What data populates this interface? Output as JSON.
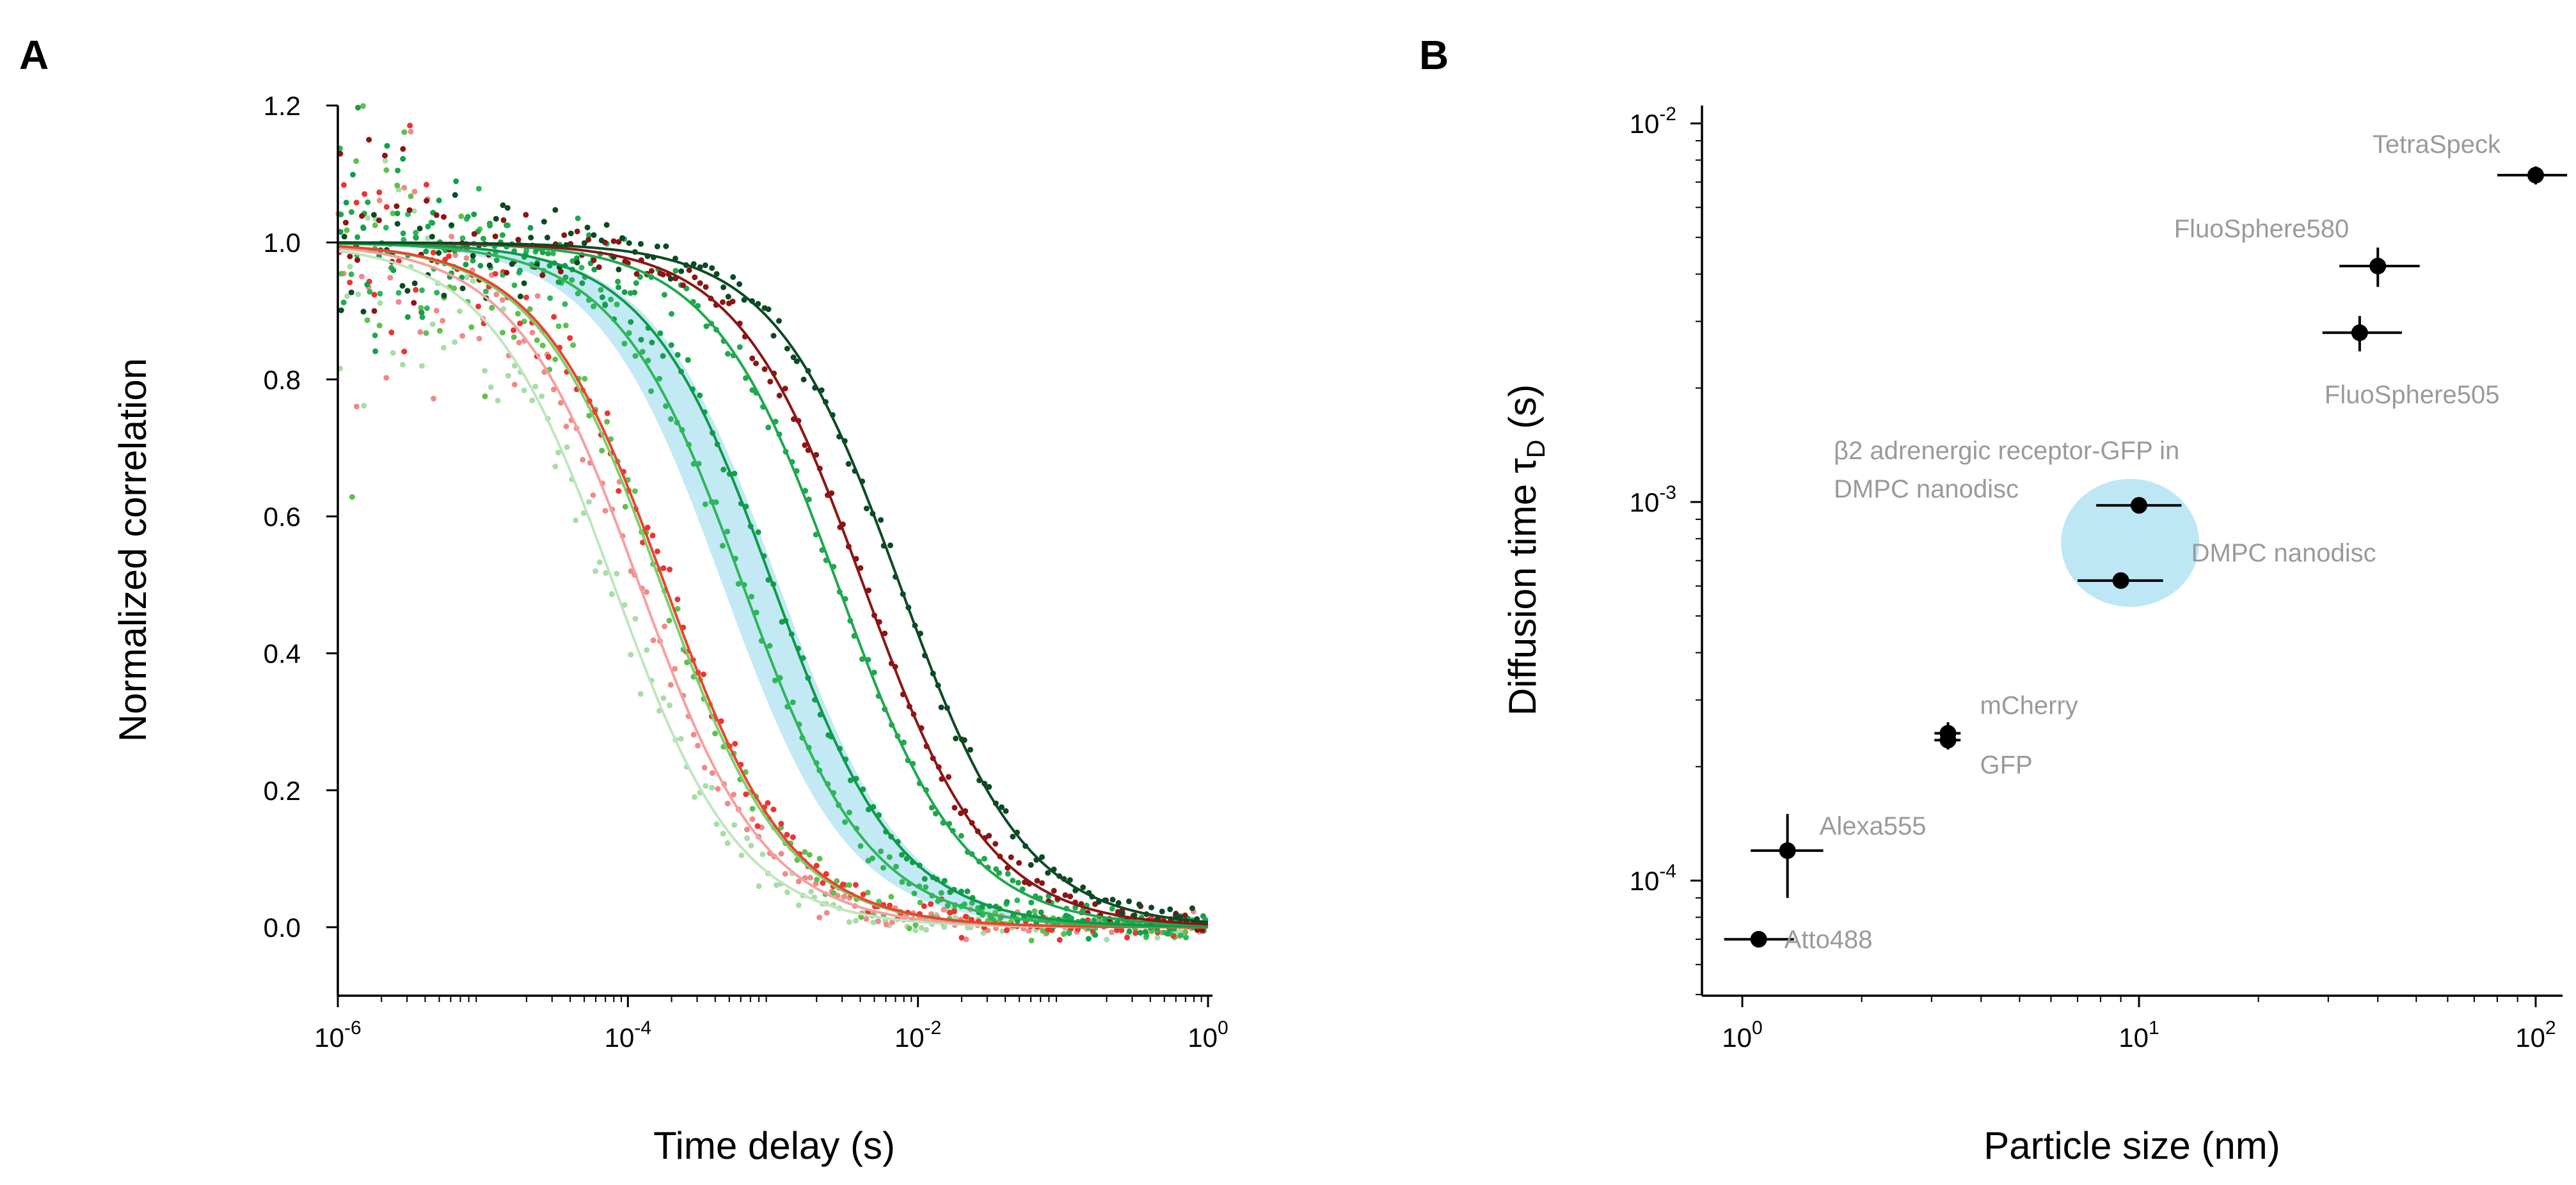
{
  "chart_data": [
    {
      "panel": "A",
      "type": "line",
      "title": "",
      "xlabel": "Time delay (s)",
      "ylabel": "Normalized correlation",
      "xscale": "log",
      "xlim": [
        1e-06,
        1
      ],
      "ylim": [
        -0.1,
        1.2
      ],
      "x_ticks": [
        {
          "value": 1e-06,
          "base": "10",
          "exp": "-6"
        },
        {
          "value": 0.0001,
          "base": "10",
          "exp": "-4"
        },
        {
          "value": 0.01,
          "base": "10",
          "exp": "-2"
        },
        {
          "value": 1,
          "base": "10",
          "exp": "0"
        }
      ],
      "y_ticks": [
        "0.0",
        "0.2",
        "0.4",
        "0.6",
        "0.8",
        "1.0",
        "1.2"
      ],
      "y_tick_values": [
        0.0,
        0.2,
        0.4,
        0.6,
        0.8,
        1.0,
        1.2
      ],
      "band": {
        "color": "#bde7f4",
        "tau_low": 0.00045,
        "tau_high": 0.0011
      },
      "series": [
        {
          "name": "Atto488",
          "color": "#bfe6bf",
          "point_color": "#a8dca8",
          "tau_d": 8e-05
        },
        {
          "name": "Alexa555",
          "color": "#f5a0a0",
          "point_color": "#f08a8a",
          "tau_d": 0.00012
        },
        {
          "name": "GFP",
          "color": "#7ccf6c",
          "point_color": "#5fc04f",
          "tau_d": 0.00017
        },
        {
          "name": "mCherry",
          "color": "#e8452c",
          "point_color": "#ee3333",
          "tau_d": 0.00018
        },
        {
          "name": "DMPC nanodisc",
          "color": "#2fb65a",
          "point_color": "#2fb65a",
          "tau_d": 0.00062
        },
        {
          "name": "β2 adrenergic receptor-GFP in DMPC nanodisc",
          "color": "#0e9a48",
          "point_color": "#12a04a",
          "tau_d": 0.001
        },
        {
          "name": "FluoSphere505",
          "color": "#1fa84f",
          "point_color": "#1fa84f",
          "tau_d": 0.0028
        },
        {
          "name": "FluoSphere580",
          "color": "#8b1515",
          "point_color": "#8b1515",
          "tau_d": 0.0042
        },
        {
          "name": "TetraSpeck",
          "color": "#0b4a24",
          "point_color": "#0b4a24",
          "tau_d": 0.0075
        }
      ]
    },
    {
      "panel": "B",
      "type": "scatter",
      "title": "",
      "xlabel": "Particle size (nm)",
      "ylabel": "Diffusion time τ",
      "ylabel_sub": "D",
      "ylabel_suffix": " (s)",
      "xscale": "log",
      "yscale": "log",
      "xlim": [
        0.8,
        120
      ],
      "ylim": [
        5e-05,
        0.012
      ],
      "x_ticks": [
        {
          "value": 1,
          "base": "10",
          "exp": "0"
        },
        {
          "value": 10,
          "base": "10",
          "exp": "1"
        },
        {
          "value": 100,
          "base": "10",
          "exp": "2"
        }
      ],
      "y_ticks": [
        {
          "value": 0.0001,
          "base": "10",
          "exp": "-4"
        },
        {
          "value": 0.001,
          "base": "10",
          "exp": "-3"
        },
        {
          "value": 0.01,
          "base": "10",
          "exp": "-2"
        }
      ],
      "highlight": {
        "color": "#bde7f4",
        "x": 9.5,
        "y": 0.00078
      },
      "points": [
        {
          "label": "Atto488",
          "x": 1.1,
          "y": 7e-05,
          "x_err": [
            0.9,
            1.35
          ],
          "y_err": null,
          "label_pos": "right"
        },
        {
          "label": "Alexa555",
          "x": 1.3,
          "y": 0.00012,
          "x_err": [
            1.05,
            1.6
          ],
          "y_err": [
            9e-05,
            0.00015
          ],
          "label_pos": "upper-right"
        },
        {
          "label": "GFP",
          "x": 3.3,
          "y": 0.000235,
          "x_err": [
            3.05,
            3.55
          ],
          "y_err": [
            0.000222,
            0.000248
          ],
          "label_pos": "lower-right"
        },
        {
          "label": "mCherry",
          "x": 3.3,
          "y": 0.000245,
          "x_err": [
            3.05,
            3.55
          ],
          "y_err": [
            0.000232,
            0.000262
          ],
          "label_pos": "upper-right"
        },
        {
          "label": "DMPC nanodisc",
          "x": 9.0,
          "y": 0.00062,
          "x_err": [
            7.0,
            11.5
          ],
          "y_err": null,
          "label_pos": "upper-right"
        },
        {
          "label": "β2 adrenergic receptor-GFP in DMPC nanodisc",
          "x": 10.0,
          "y": 0.00098,
          "x_err": [
            7.8,
            12.8
          ],
          "y_err": null,
          "label_pos": "upper-left"
        },
        {
          "label": "FluoSphere505",
          "x": 36,
          "y": 0.0028,
          "x_err": [
            29,
            46
          ],
          "y_err": [
            0.0025,
            0.0031
          ],
          "label_pos": "lower-right"
        },
        {
          "label": "FluoSphere580",
          "x": 40,
          "y": 0.0042,
          "x_err": [
            32,
            51
          ],
          "y_err": [
            0.0037,
            0.0047
          ],
          "label_pos": "upper-left"
        },
        {
          "label": "TetraSpeck",
          "x": 100,
          "y": 0.0073,
          "x_err": [
            80,
            120
          ],
          "y_err": [
            0.0069,
            0.0077
          ],
          "label_pos": "upper-left"
        }
      ]
    }
  ],
  "labels": {
    "panel_a": "A",
    "panel_b": "B",
    "annot_b2_line1": "β2 adrenergic receptor-GFP in",
    "annot_b2_line2": "DMPC nanodisc"
  }
}
